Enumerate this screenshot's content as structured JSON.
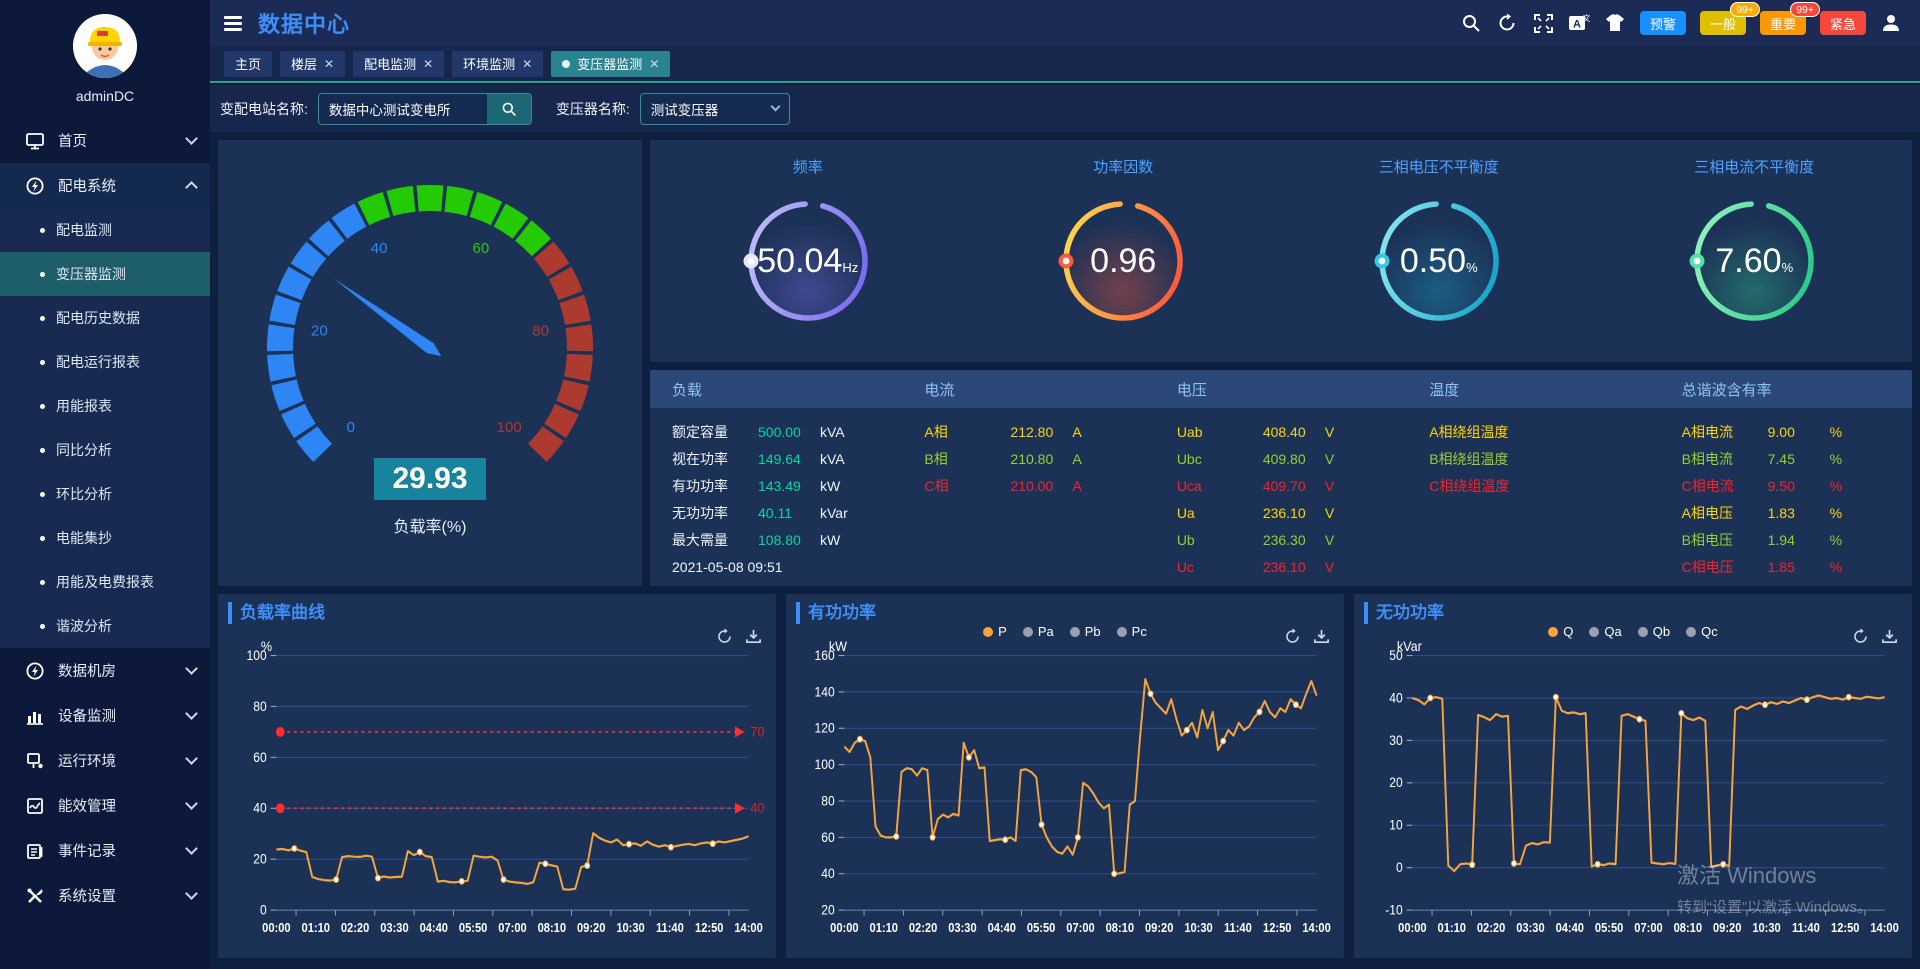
{
  "header": {
    "title": "数据中心",
    "alarm_buttons": [
      {
        "label": "预警",
        "color": "#1890ff",
        "badge": ""
      },
      {
        "label": "一般",
        "color": "#dfc000",
        "badge": "99+",
        "badge_color": "#ffaa00"
      },
      {
        "label": "重要",
        "color": "#ff9800",
        "badge": "99+",
        "badge_color": "#f5483b"
      },
      {
        "label": "紧急",
        "color": "#f5483b",
        "badge": ""
      }
    ]
  },
  "user": {
    "name": "adminDC"
  },
  "tabs": [
    {
      "label": "主页",
      "closable": false,
      "active": false
    },
    {
      "label": "楼层",
      "closable": true,
      "active": false
    },
    {
      "label": "配电监测",
      "closable": true,
      "active": false
    },
    {
      "label": "环境监测",
      "closable": true,
      "active": false
    },
    {
      "label": "变压器监测",
      "closable": true,
      "active": true
    }
  ],
  "sidebar": {
    "items": [
      {
        "label": "首页",
        "icon": "home-monitor-icon",
        "expanded": false,
        "children": []
      },
      {
        "label": "配电系统",
        "icon": "power-bolt-icon",
        "expanded": true,
        "children": [
          "配电监测",
          "变压器监测",
          "配电历史数据",
          "配电运行报表",
          "用能报表",
          "同比分析",
          "环比分析",
          "电能集抄",
          "用能及电费报表",
          "谐波分析"
        ],
        "selected_child": "变压器监测"
      },
      {
        "label": "数据机房",
        "icon": "power-bolt-icon",
        "expanded": false,
        "children": []
      },
      {
        "label": "设备监测",
        "icon": "bar-chart-icon",
        "expanded": false,
        "children": []
      },
      {
        "label": "运行环境",
        "icon": "environment-icon",
        "expanded": false,
        "children": []
      },
      {
        "label": "能效管理",
        "icon": "energy-icon",
        "expanded": false,
        "children": []
      },
      {
        "label": "事件记录",
        "icon": "events-icon",
        "expanded": false,
        "children": []
      },
      {
        "label": "系统设置",
        "icon": "settings-icon",
        "expanded": false,
        "children": []
      }
    ]
  },
  "filters": {
    "station_label": "变配电站名称:",
    "station_value": "数据中心测试变电所",
    "transformer_label": "变压器名称:",
    "transformer_value": "测试变压器"
  },
  "load_gauge": {
    "value": "29.93",
    "numeric": 29.93,
    "label": "负载率(%)",
    "min": 0,
    "max": 100,
    "ticks": [
      0,
      20,
      40,
      60,
      80,
      100
    ],
    "zones": [
      {
        "from": 0,
        "to": 40,
        "color": "#2e86f5"
      },
      {
        "from": 40,
        "to": 68,
        "color": "#24cb05"
      },
      {
        "from": 68,
        "to": 100,
        "color": "#ad3a2e"
      }
    ],
    "value_box_color": "#17839c"
  },
  "ring_gauges": [
    {
      "title": "频率",
      "value": "50.04",
      "unit": "Hz",
      "color1": "#bcb6f8",
      "color2": "#7a6ef0",
      "dot": "#e8e6fd"
    },
    {
      "title": "功率因数",
      "value": "0.96",
      "unit": "",
      "color1": "#ffd24d",
      "color2": "#ff5a3c",
      "dot": "#ff5a3c"
    },
    {
      "title": "三相电压不平衡度",
      "value": "0.50",
      "unit": "%",
      "color1": "#7fe3f0",
      "color2": "#18a6c9",
      "dot": "#35c8e8"
    },
    {
      "title": "三相电流不平衡度",
      "value": "7.60",
      "unit": "%",
      "color1": "#8af0b8",
      "color2": "#2ecb8a",
      "dot": "#4fe3a1"
    }
  ],
  "phase_colors": {
    "a": "#ffd400",
    "b": "#9acd32",
    "c": "#f5222d",
    "value": "#00d7a7",
    "white": "#f0f4fb"
  },
  "table": {
    "columns": [
      {
        "header": "负载",
        "rows": [
          {
            "label": "额定容量",
            "value": "500.00",
            "unit": "kVA",
            "color": "value"
          },
          {
            "label": "视在功率",
            "value": "149.64",
            "unit": "kVA",
            "color": "value"
          },
          {
            "label": "有功功率",
            "value": "143.49",
            "unit": "kW",
            "color": "value"
          },
          {
            "label": "无功功率",
            "value": "40.11",
            "unit": "kVar",
            "color": "value"
          },
          {
            "label": "最大需量",
            "value": "108.80",
            "unit": "kW",
            "color": "value"
          },
          {
            "label": "2021-05-08 09:51",
            "value": "",
            "unit": "",
            "color": "white"
          }
        ]
      },
      {
        "header": "电流",
        "rows": [
          {
            "label": "A相",
            "value": "212.80",
            "unit": "A",
            "color": "a"
          },
          {
            "label": "B相",
            "value": "210.80",
            "unit": "A",
            "color": "b"
          },
          {
            "label": "C相",
            "value": "210.00",
            "unit": "A",
            "color": "c"
          }
        ]
      },
      {
        "header": "电压",
        "rows": [
          {
            "label": "Uab",
            "value": "408.40",
            "unit": "V",
            "color": "a"
          },
          {
            "label": "Ubc",
            "value": "409.80",
            "unit": "V",
            "color": "b"
          },
          {
            "label": "Uca",
            "value": "409.70",
            "unit": "V",
            "color": "c"
          },
          {
            "label": "Ua",
            "value": "236.10",
            "unit": "V",
            "color": "a"
          },
          {
            "label": "Ub",
            "value": "236.30",
            "unit": "V",
            "color": "b"
          },
          {
            "label": "Uc",
            "value": "236.10",
            "unit": "V",
            "color": "c"
          }
        ]
      },
      {
        "header": "温度",
        "rows": [
          {
            "label": "A相绕组温度",
            "value": "",
            "unit": "",
            "color": "a"
          },
          {
            "label": "B相绕组温度",
            "value": "",
            "unit": "",
            "color": "b"
          },
          {
            "label": "C相绕组温度",
            "value": "",
            "unit": "",
            "color": "c"
          }
        ]
      },
      {
        "header": "总谐波含有率",
        "rows": [
          {
            "label": "A相电流",
            "value": "9.00",
            "unit": "%",
            "color": "a"
          },
          {
            "label": "B相电流",
            "value": "7.45",
            "unit": "%",
            "color": "b"
          },
          {
            "label": "C相电流",
            "value": "9.50",
            "unit": "%",
            "color": "c"
          },
          {
            "label": "A相电压",
            "value": "1.83",
            "unit": "%",
            "color": "a"
          },
          {
            "label": "B相电压",
            "value": "1.94",
            "unit": "%",
            "color": "b"
          },
          {
            "label": "C相电压",
            "value": "1.85",
            "unit": "%",
            "color": "c"
          }
        ]
      }
    ]
  },
  "chart_data": [
    {
      "type": "line",
      "title": "负载率曲线",
      "ylabel": "%",
      "ylim": [
        0,
        100
      ],
      "yticks": [
        0,
        20,
        40,
        60,
        80,
        100
      ],
      "grid": true,
      "legend": [],
      "x_ticks": [
        "00:00",
        "01:10",
        "02:20",
        "03:30",
        "04:40",
        "05:50",
        "07:00",
        "08:10",
        "09:20",
        "10:30",
        "11:40",
        "12:50",
        "14:00"
      ],
      "marklines": [
        {
          "value": 70,
          "label": "70"
        },
        {
          "value": 40,
          "label": "40"
        }
      ],
      "series": [
        {
          "name": "负载率",
          "color": "#f6a53c",
          "values": [
            23.8,
            24,
            23.5,
            24.2,
            23.4,
            22.8,
            13,
            12.2,
            11.8,
            11.6,
            12,
            20.8,
            21.2,
            21,
            20.9,
            21.4,
            21,
            12.6,
            13.2,
            12.8,
            13,
            13.1,
            23.2,
            21.6,
            22.8,
            21.2,
            20.8,
            11.2,
            11.5,
            11,
            10.9,
            11.3,
            11.5,
            21.4,
            21,
            20.7,
            21,
            19.5,
            12,
            11.2,
            10.9,
            10.7,
            10.3,
            11,
            18.6,
            18.2,
            17.6,
            17.1,
            8.2,
            8,
            8.4,
            16.9,
            17.5,
            30.2,
            28.4,
            27.3,
            26.6,
            27.7,
            25.5,
            25.9,
            26.2,
            25.3,
            27,
            25.7,
            24.9,
            25.5,
            24.7,
            25.2,
            25.7,
            26,
            25.5,
            26.2,
            26.6,
            26.1,
            27,
            26.6,
            27.1,
            27.6,
            28.1,
            29
          ]
        }
      ]
    },
    {
      "type": "line",
      "title": "有功功率",
      "ylabel": "kW",
      "ylim": [
        20,
        160
      ],
      "yticks": [
        20,
        40,
        60,
        80,
        100,
        120,
        140,
        160
      ],
      "grid": true,
      "legend": [
        {
          "name": "P",
          "active": true
        },
        {
          "name": "Pa",
          "active": false
        },
        {
          "name": "Pb",
          "active": false
        },
        {
          "name": "Pc",
          "active": false
        }
      ],
      "x_ticks": [
        "00:00",
        "01:10",
        "02:20",
        "03:30",
        "04:40",
        "05:50",
        "07:00",
        "08:10",
        "09:20",
        "10:30",
        "11:40",
        "12:50",
        "14:00"
      ],
      "marklines": [],
      "series": [
        {
          "name": "P",
          "color": "#f6a53c",
          "values": [
            110,
            107,
            112,
            114,
            113,
            104,
            66,
            61,
            60,
            60,
            60.5,
            96,
            98,
            97.5,
            94,
            98,
            97,
            60,
            70,
            72.5,
            71,
            73,
            72,
            112,
            104,
            108,
            98,
            98.5,
            58,
            58.5,
            59,
            58.7,
            60,
            58,
            97,
            97.5,
            96,
            93,
            67,
            60,
            55,
            52,
            51,
            55,
            50.5,
            60,
            90,
            88,
            84,
            79,
            76,
            78,
            40,
            40.2,
            41,
            78,
            80,
            116,
            147,
            139,
            134,
            131,
            128,
            136,
            125,
            116,
            119,
            123,
            115,
            130,
            120,
            129,
            108,
            113,
            119,
            116,
            123,
            119,
            121,
            126,
            129,
            135,
            129,
            126,
            131,
            129,
            136,
            133,
            131,
            139,
            146,
            138
          ]
        }
      ]
    },
    {
      "type": "line",
      "title": "无功功率",
      "ylabel": "kVar",
      "ylim": [
        -10,
        50
      ],
      "yticks": [
        -10,
        0,
        10,
        20,
        30,
        40,
        50
      ],
      "grid": true,
      "legend": [
        {
          "name": "Q",
          "active": true
        },
        {
          "name": "Qa",
          "active": false
        },
        {
          "name": "Qb",
          "active": false
        },
        {
          "name": "Qc",
          "active": false
        }
      ],
      "x_ticks": [
        "00:00",
        "01:10",
        "02:20",
        "03:30",
        "04:40",
        "05:50",
        "07:00",
        "08:10",
        "09:20",
        "10:30",
        "11:40",
        "12:50",
        "14:00"
      ],
      "marklines": [],
      "series": [
        {
          "name": "Q",
          "color": "#f6a53c",
          "values": [
            40,
            39.5,
            38.5,
            40,
            40.2,
            39.8,
            0.5,
            -0.8,
            0.8,
            1,
            0.7,
            36,
            35.5,
            34.8,
            36.2,
            35.6,
            35.8,
            1,
            0.8,
            5.2,
            5.8,
            5.5,
            6,
            5.9,
            40.2,
            37,
            36.4,
            36.6,
            36.2,
            36.4,
            0.3,
            0.8,
            0.6,
            1,
            0.8,
            35.8,
            36.2,
            35.6,
            35,
            34.6,
            1.2,
            1,
            0.8,
            1.1,
            0.9,
            36.4,
            35.2,
            34.8,
            35.4,
            34.6,
            0.2,
            0.5,
            0.8,
            0.4,
            37.2,
            38,
            37.4,
            38.2,
            38.8,
            38.4,
            39,
            38.6,
            39.2,
            38.8,
            39.4,
            40,
            39.6,
            40.2,
            40.6,
            40.2,
            39.8,
            40,
            39.6,
            40.2,
            40,
            39.8,
            40.3,
            40.1,
            39.9,
            40.2
          ]
        }
      ]
    }
  ],
  "watermark": {
    "line1": "激活 Windows",
    "line2": "转到“设置”以激活 Windows。"
  }
}
